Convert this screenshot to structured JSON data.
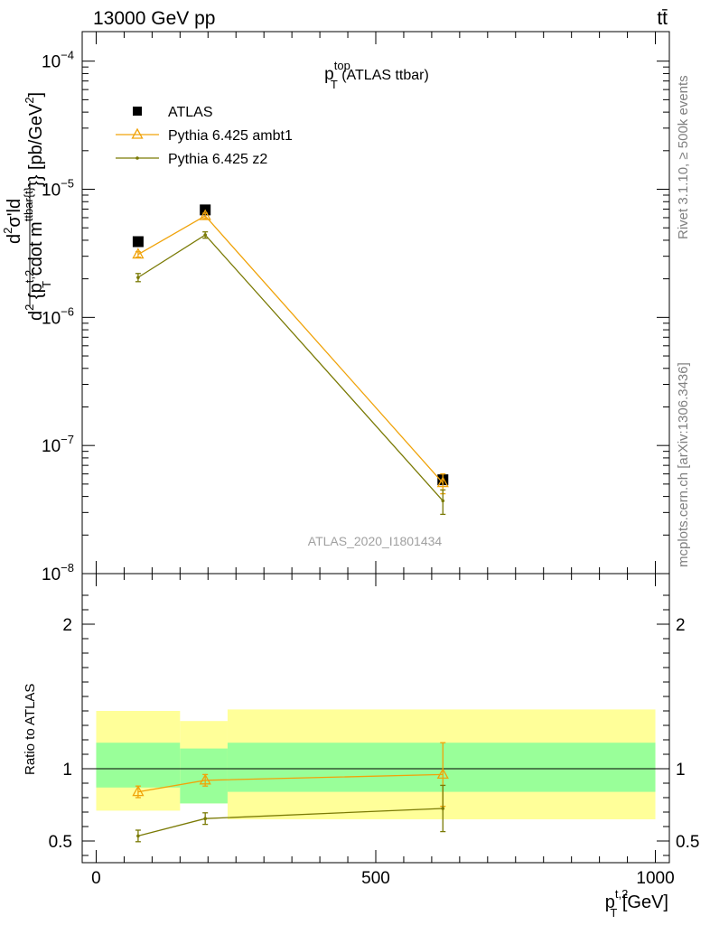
{
  "header": {
    "left": "13000 GeV pp",
    "right": "tt̄"
  },
  "side_labels": {
    "upper": "Rivet 3.1.10, ≥ 500k events",
    "lower": "mcplots.cern.ch [arXiv:1306.3436]"
  },
  "watermark": "ATLAS_2020_I1801434",
  "colors": {
    "data": "#000000",
    "ambt1": "#f0a30a",
    "z2": "#7a7a05",
    "band_outer": "#ffff99",
    "band_inner": "#99ff99",
    "side_text": "#808080"
  },
  "chart_data": [
    {
      "type": "scatter",
      "panel": "main",
      "title": {
        "main": "p",
        "sup": "top",
        "sub": "T",
        "suffix": " (ATLAS ttbar)"
      },
      "yscale": "log",
      "ylim": [
        1e-08,
        0.00017
      ],
      "ylabel": {
        "part1": "d",
        "sup1": "2",
        "part2": "σʹld",
        "part3": "d",
        "sup2": "2",
        "part4": " {p",
        "sup3": "t,2",
        "sub3": "T",
        "part5": " cdot m",
        "sup4": "ttbar{t}",
        "part6": "}} [pb/GeV",
        "sup5": "2",
        "part7": "]"
      },
      "yticks": [
        {
          "base": "10",
          "exp": "−4",
          "value": 0.0001
        },
        {
          "base": "10",
          "exp": "−5",
          "value": 1e-05
        },
        {
          "base": "10",
          "exp": "−6",
          "value": 1e-06
        },
        {
          "base": "10",
          "exp": "−7",
          "value": 1e-07
        },
        {
          "base": "10",
          "exp": "−8",
          "value": 1e-08
        }
      ],
      "legend": {
        "position": "top-left",
        "entries": [
          "ATLAS",
          "Pythia 6.425 ambt1",
          "Pythia 6.425 z2"
        ]
      },
      "series": [
        {
          "name": "ATLAS",
          "marker": "square",
          "points": [
            {
              "x": 75,
              "y": 3.9e-06,
              "err": 1e-07
            },
            {
              "x": 195,
              "y": 6.9e-06,
              "err": 1.5e-07
            },
            {
              "x": 620,
              "y": 5.4e-08,
              "err": 3e-09
            }
          ]
        },
        {
          "name": "Pythia 6.425 ambt1",
          "marker": "triangle",
          "points": [
            {
              "x": 75,
              "y": 3.1e-06,
              "err": 1.5e-07
            },
            {
              "x": 195,
              "y": 6.2e-06,
              "err": 3e-07
            },
            {
              "x": 620,
              "y": 5.1e-08,
              "err": 9e-09
            }
          ]
        },
        {
          "name": "Pythia 6.425 z2",
          "marker": "dot",
          "points": [
            {
              "x": 75,
              "y": 2.05e-06,
              "err": 1.5e-07
            },
            {
              "x": 195,
              "y": 4.4e-06,
              "err": 2.5e-07
            },
            {
              "x": 620,
              "y": 3.7e-08,
              "err": 8e-09
            }
          ]
        }
      ]
    },
    {
      "type": "scatter",
      "panel": "ratio",
      "ylabel": "Ratio to ATLAS",
      "ylim": [
        0.35,
        2.35
      ],
      "yticks": [
        "2",
        "1",
        "0.5"
      ],
      "xlim": [
        -25,
        1025
      ],
      "xticks": [
        "0",
        "500",
        "1000"
      ],
      "xlabel": {
        "main": "p",
        "sup": "t,2",
        "sub": "T",
        "suffix": " [GeV]"
      },
      "bands": [
        {
          "x0": 0,
          "x1": 150,
          "inner": [
            0.87,
            1.18
          ],
          "outer": [
            0.71,
            1.4
          ]
        },
        {
          "x0": 150,
          "x1": 235,
          "inner": [
            0.76,
            1.14
          ],
          "outer": [
            0.76,
            1.33
          ]
        },
        {
          "x0": 235,
          "x1": 1000,
          "inner": [
            0.84,
            1.18
          ],
          "outer": [
            0.65,
            1.41
          ]
        }
      ],
      "reference": 1,
      "series": [
        {
          "name": "Pythia 6.425 ambt1",
          "marker": "triangle",
          "points": [
            {
              "x": 75,
              "y": 0.84,
              "err": 0.04
            },
            {
              "x": 195,
              "y": 0.92,
              "err": 0.04
            },
            {
              "x": 620,
              "y": 0.96,
              "err": 0.22
            }
          ]
        },
        {
          "name": "Pythia 6.425 z2",
          "marker": "dot",
          "points": [
            {
              "x": 75,
              "y": 0.535,
              "err": 0.04
            },
            {
              "x": 195,
              "y": 0.655,
              "err": 0.04
            },
            {
              "x": 620,
              "y": 0.725,
              "err": 0.16
            }
          ]
        }
      ]
    }
  ]
}
